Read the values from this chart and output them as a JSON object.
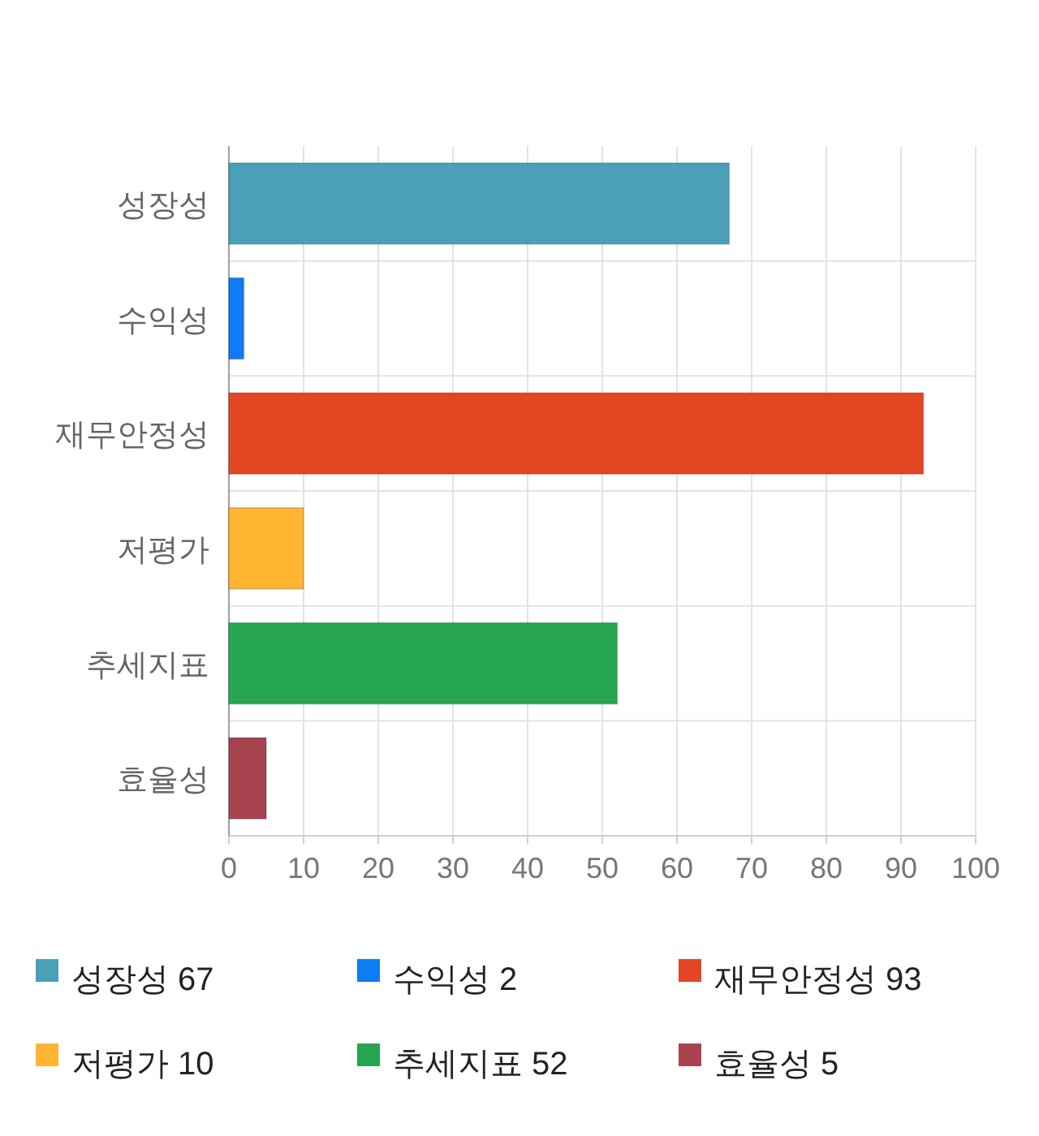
{
  "chart_data": {
    "type": "bar",
    "orientation": "horizontal",
    "categories": [
      "성장성",
      "수익성",
      "재무안정성",
      "저평가",
      "추세지표",
      "효율성"
    ],
    "series": [
      {
        "name": "성장성 67",
        "color": "#4aa0b9",
        "values": [
          67,
          null,
          null,
          null,
          null,
          null
        ]
      },
      {
        "name": "수익성 2",
        "color": "#0d7cf5",
        "values": [
          null,
          2,
          null,
          null,
          null,
          null
        ]
      },
      {
        "name": "재무안정성 93",
        "color": "#e24622",
        "values": [
          null,
          null,
          93,
          null,
          null,
          null
        ]
      },
      {
        "name": "저평가 10",
        "color": "#ffb531",
        "values": [
          null,
          null,
          null,
          10,
          null,
          null
        ]
      },
      {
        "name": "추세지표 52",
        "color": "#27a651",
        "values": [
          null,
          null,
          null,
          null,
          52,
          null
        ]
      },
      {
        "name": "효율성 5",
        "color": "#a84350",
        "values": [
          null,
          null,
          null,
          null,
          null,
          5
        ]
      }
    ],
    "xlim": [
      0,
      100
    ],
    "xticks": [
      0,
      10,
      20,
      30,
      40,
      50,
      60,
      70,
      80,
      90,
      100
    ],
    "grid": true,
    "legend": "bottom"
  }
}
